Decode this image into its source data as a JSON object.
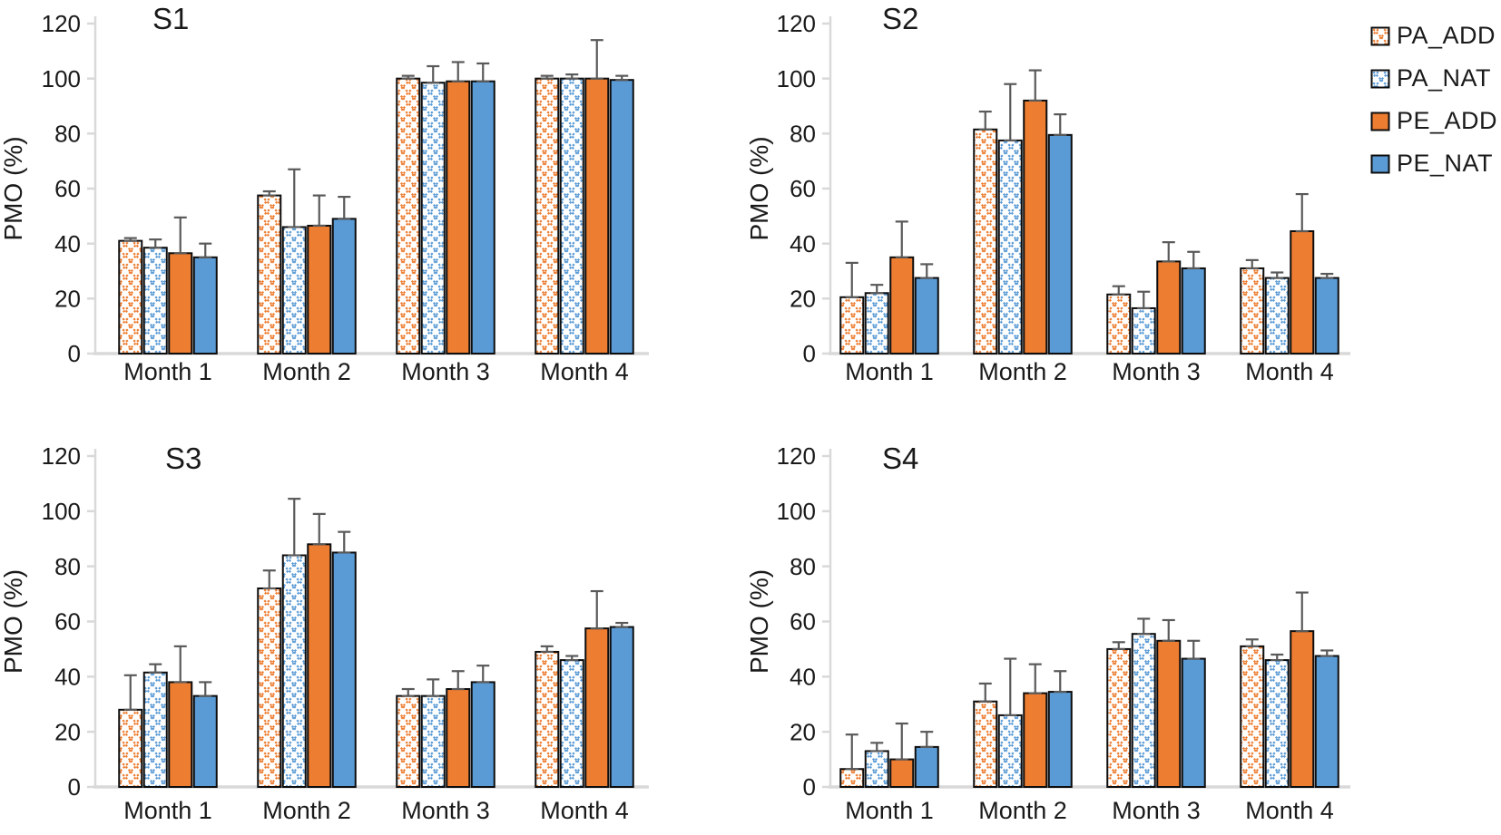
{
  "page": {
    "background": "#ffffff"
  },
  "colors": {
    "orange": "#ED7D31",
    "blue": "#5B9BD5",
    "axis": "#D9D9D9",
    "error_bar": "#595959",
    "text": "#1a1a1a",
    "bar_outline": "#0d0d0d"
  },
  "legend": {
    "position": "right",
    "items": [
      {
        "label": "PA_ADD",
        "swatch": "hatch-orange"
      },
      {
        "label": "PA_NAT",
        "swatch": "hatch-blue"
      },
      {
        "label": "PE_ADD",
        "swatch": "solid-orange"
      },
      {
        "label": "PE_NAT",
        "swatch": "solid-blue"
      }
    ]
  },
  "chart_data": [
    {
      "id": "S1",
      "type": "bar",
      "title": "S1",
      "xlabel": "",
      "ylabel": "PMO (%)",
      "categories": [
        "Month 1",
        "Month 2",
        "Month 3",
        "Month 4"
      ],
      "ylim": [
        0,
        120
      ],
      "yticks": [
        0,
        20,
        40,
        60,
        80,
        100,
        120
      ],
      "grid": false,
      "series": [
        {
          "name": "PA_ADD",
          "fill": "hatch-orange",
          "values": [
            41,
            57.5,
            100,
            100
          ],
          "errors": [
            1,
            1.5,
            1,
            1
          ]
        },
        {
          "name": "PA_NAT",
          "fill": "hatch-blue",
          "values": [
            38.5,
            46,
            98.5,
            100
          ],
          "errors": [
            3,
            21,
            6,
            1.5
          ]
        },
        {
          "name": "PE_ADD",
          "fill": "solid-orange",
          "values": [
            36.5,
            46.5,
            99,
            100
          ],
          "errors": [
            13,
            11,
            7,
            14
          ]
        },
        {
          "name": "PE_NAT",
          "fill": "solid-blue",
          "values": [
            35,
            49,
            99,
            99.5
          ],
          "errors": [
            5,
            8,
            6.5,
            1.5
          ]
        }
      ]
    },
    {
      "id": "S2",
      "type": "bar",
      "title": "S2",
      "xlabel": "",
      "ylabel": "PMO (%)",
      "categories": [
        "Month 1",
        "Month 2",
        "Month 3",
        "Month 4"
      ],
      "ylim": [
        0,
        120
      ],
      "yticks": [
        0,
        20,
        40,
        60,
        80,
        100,
        120
      ],
      "grid": false,
      "series": [
        {
          "name": "PA_ADD",
          "fill": "hatch-orange",
          "values": [
            20.5,
            81.5,
            21.5,
            31
          ],
          "errors": [
            12.5,
            6.5,
            3,
            3
          ]
        },
        {
          "name": "PA_NAT",
          "fill": "hatch-blue",
          "values": [
            22,
            77.5,
            16.5,
            27.5
          ],
          "errors": [
            3,
            20.5,
            6,
            2
          ]
        },
        {
          "name": "PE_ADD",
          "fill": "solid-orange",
          "values": [
            35,
            92,
            33.5,
            44.5
          ],
          "errors": [
            13,
            11,
            7,
            13.5
          ]
        },
        {
          "name": "PE_NAT",
          "fill": "solid-blue",
          "values": [
            27.5,
            79.5,
            31,
            27.5
          ],
          "errors": [
            5,
            7.5,
            6,
            1.5
          ]
        }
      ]
    },
    {
      "id": "S3",
      "type": "bar",
      "title": "S3",
      "xlabel": "",
      "ylabel": "PMO (%)",
      "categories": [
        "Month 1",
        "Month 2",
        "Month 3",
        "Month 4"
      ],
      "ylim": [
        0,
        120
      ],
      "yticks": [
        0,
        20,
        40,
        60,
        80,
        100,
        120
      ],
      "grid": false,
      "series": [
        {
          "name": "PA_ADD",
          "fill": "hatch-orange",
          "values": [
            28,
            72,
            33,
            49
          ],
          "errors": [
            12.5,
            6.5,
            2.5,
            2
          ]
        },
        {
          "name": "PA_NAT",
          "fill": "hatch-blue",
          "values": [
            41.5,
            84,
            33,
            46
          ],
          "errors": [
            3,
            20.5,
            6,
            1.5
          ]
        },
        {
          "name": "PE_ADD",
          "fill": "solid-orange",
          "values": [
            38,
            88,
            35.5,
            57.5
          ],
          "errors": [
            13,
            11,
            6.5,
            13.5
          ]
        },
        {
          "name": "PE_NAT",
          "fill": "solid-blue",
          "values": [
            33,
            85,
            38,
            58
          ],
          "errors": [
            5,
            7.5,
            6,
            1.5
          ]
        }
      ]
    },
    {
      "id": "S4",
      "type": "bar",
      "title": "S4",
      "xlabel": "",
      "ylabel": "PMO (%)",
      "categories": [
        "Month 1",
        "Month 2",
        "Month 3",
        "Month 4"
      ],
      "ylim": [
        0,
        120
      ],
      "yticks": [
        0,
        20,
        40,
        60,
        80,
        100,
        120
      ],
      "grid": false,
      "series": [
        {
          "name": "PA_ADD",
          "fill": "hatch-orange",
          "values": [
            6.5,
            31,
            50,
            51
          ],
          "errors": [
            12.5,
            6.5,
            2.5,
            2.5
          ]
        },
        {
          "name": "PA_NAT",
          "fill": "hatch-blue",
          "values": [
            13,
            26,
            55.5,
            46
          ],
          "errors": [
            3,
            20.5,
            5.5,
            2
          ]
        },
        {
          "name": "PE_ADD",
          "fill": "solid-orange",
          "values": [
            10,
            34,
            53,
            56.5
          ],
          "errors": [
            13,
            10.5,
            7.5,
            14
          ]
        },
        {
          "name": "PE_NAT",
          "fill": "solid-blue",
          "values": [
            14.5,
            34.5,
            46.5,
            47.5
          ],
          "errors": [
            5.5,
            7.5,
            6.5,
            2
          ]
        }
      ]
    }
  ]
}
